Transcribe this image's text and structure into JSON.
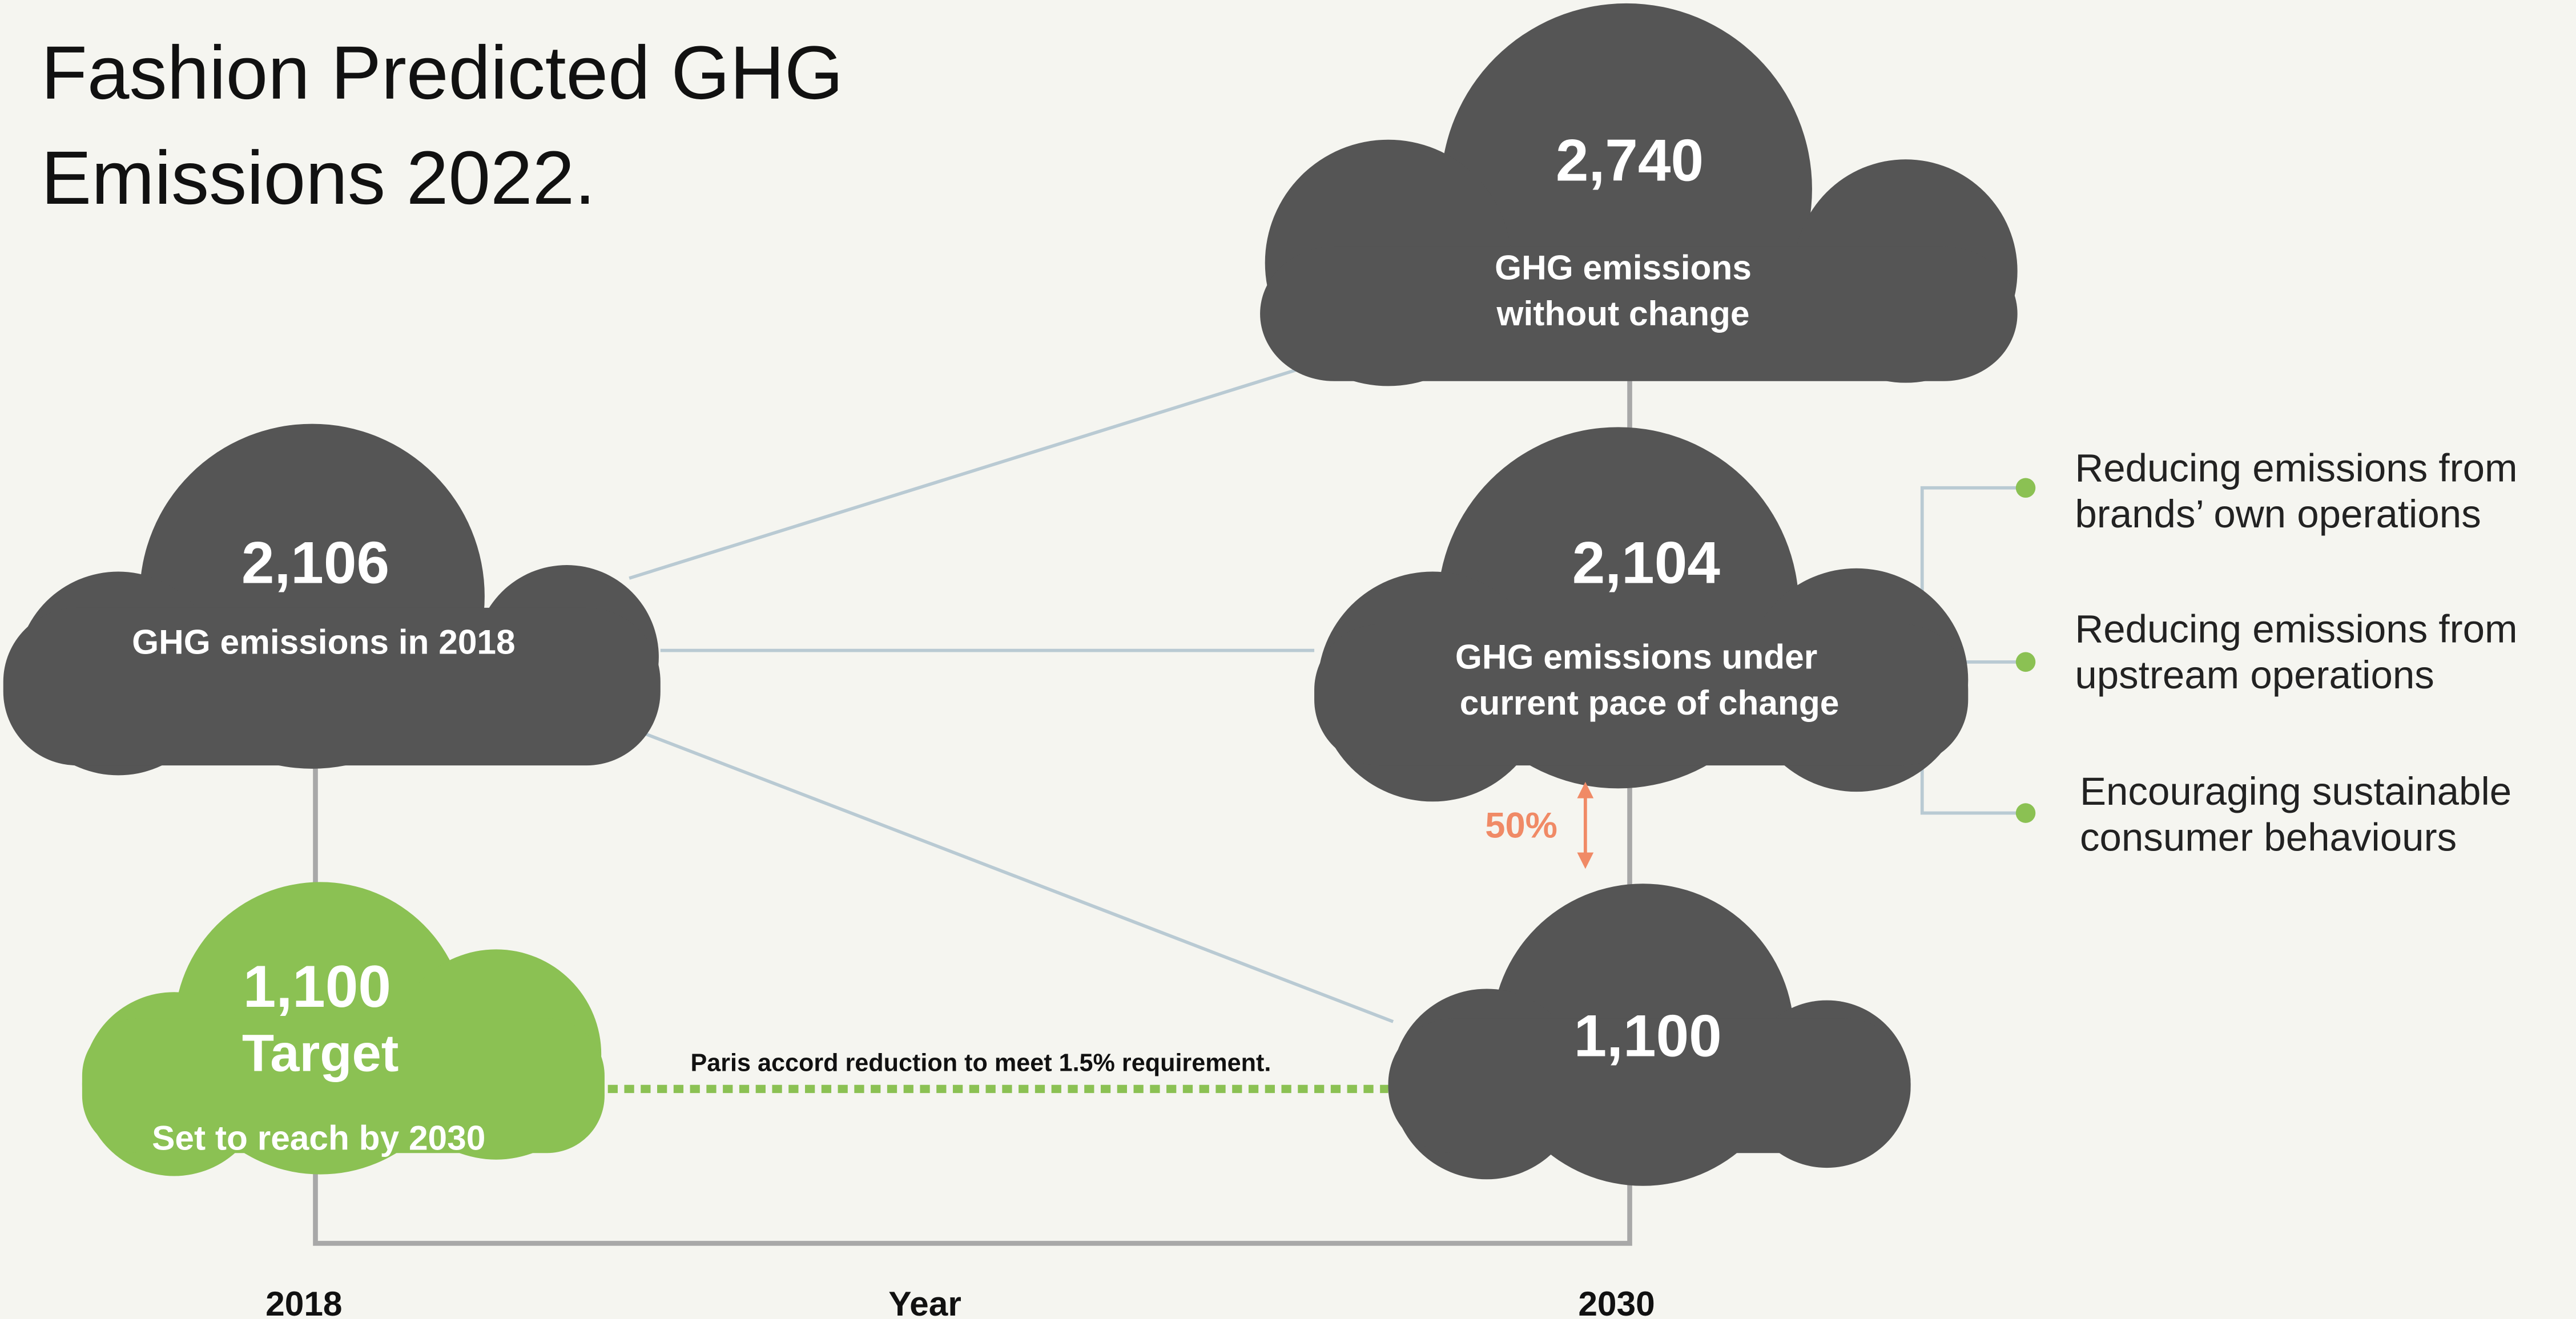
{
  "title": [
    "Fashion Predicted GHG",
    "Emissions 2022."
  ],
  "clouds": [
    {
      "value": "2,740",
      "label": [
        "GHG emissions",
        "without change"
      ]
    },
    {
      "value": "2,106",
      "label": [
        "GHG emissions in 2018"
      ]
    },
    {
      "value": "2,104",
      "label": [
        "GHG emissions under",
        "current pace of change"
      ]
    },
    {
      "value": "1,100",
      "title": "Target",
      "label": [
        "Set to reach by 2030"
      ]
    },
    {
      "value": "1,100"
    }
  ],
  "reduction_label": "50%",
  "paris_note": "Paris accord reduction to meet 1.5% requirement.",
  "actions": [
    [
      "Reducing emissions from",
      "brands’ own operations"
    ],
    [
      "Reducing emissions from",
      "upstream operations"
    ],
    [
      "Encouraging sustainable",
      "consumer behaviours"
    ]
  ],
  "axis": {
    "label": "Year",
    "ticks": [
      "2018",
      "2030"
    ]
  }
}
